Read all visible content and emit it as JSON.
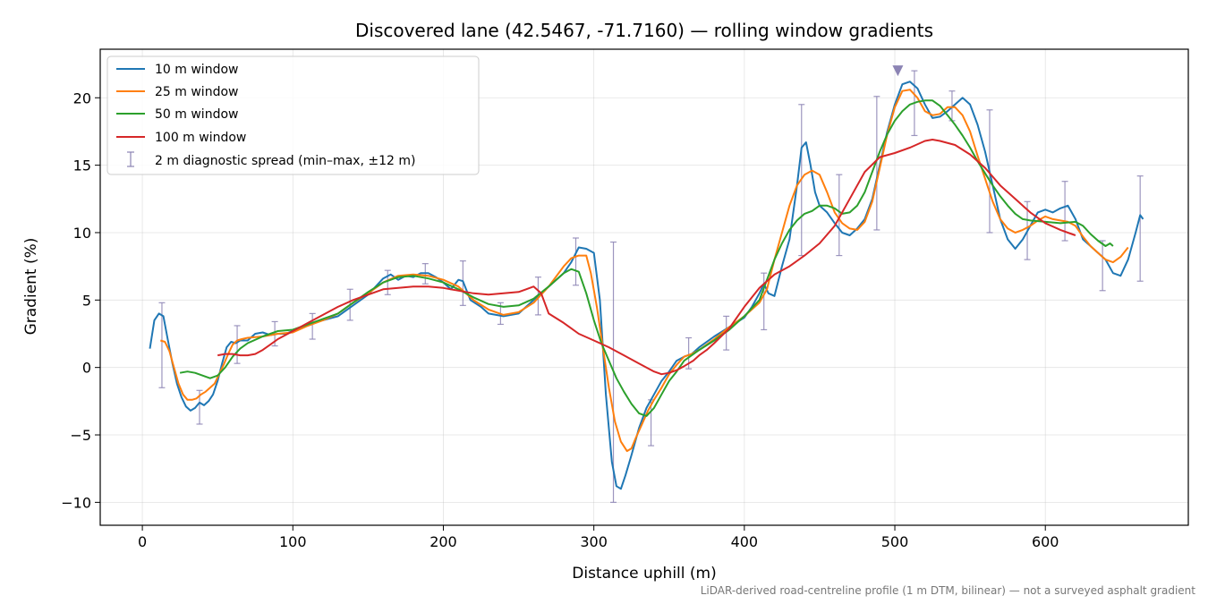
{
  "chart_data": {
    "type": "line",
    "title": "Discovered lane (42.5467, -71.7160) — rolling window gradients",
    "xlabel": "Distance uphill (m)",
    "ylabel": "Gradient (%)",
    "xlim": [
      -28,
      695
    ],
    "ylim": [
      -11.7,
      23.6
    ],
    "xticks": [
      0,
      100,
      200,
      300,
      400,
      500,
      600
    ],
    "yticks": [
      -10,
      -5,
      0,
      5,
      10,
      15,
      20
    ],
    "grid": true,
    "legend_position": "top-left",
    "footnote": "LiDAR-derived road-centreline profile (1 m DTM, bilinear) — not a surveyed asphalt gradient",
    "colors": {
      "w10": "#1f77b4",
      "w25": "#ff7f0e",
      "w50": "#2ca02c",
      "w100": "#d62728",
      "spread": "#8c84b4"
    },
    "series": [
      {
        "name": "10 m window",
        "color": "#1f77b4",
        "x": [
          5,
          8,
          11,
          14,
          17,
          20,
          23,
          26,
          29,
          32,
          35,
          38,
          41,
          44,
          47,
          50,
          53,
          56,
          59,
          62,
          65,
          70,
          75,
          80,
          85,
          90,
          95,
          100,
          110,
          120,
          130,
          140,
          150,
          160,
          165,
          170,
          175,
          180,
          185,
          190,
          195,
          200,
          205,
          210,
          213,
          218,
          225,
          230,
          240,
          250,
          260,
          270,
          280,
          285,
          290,
          295,
          300,
          304,
          308,
          312,
          315,
          318,
          321,
          325,
          330,
          335,
          340,
          345,
          350,
          355,
          360,
          365,
          370,
          380,
          390,
          400,
          405,
          410,
          413,
          416,
          420,
          425,
          430,
          435,
          438,
          441,
          444,
          447,
          450,
          455,
          460,
          465,
          470,
          475,
          480,
          485,
          490,
          495,
          500,
          505,
          510,
          515,
          520,
          525,
          530,
          535,
          540,
          545,
          550,
          555,
          560,
          565,
          570,
          575,
          580,
          585,
          590,
          595,
          600,
          605,
          610,
          615,
          620,
          625,
          630,
          635,
          640,
          645,
          650,
          655,
          660,
          663,
          665
        ],
        "y": [
          1.4,
          3.5,
          4.0,
          3.8,
          2.0,
          0.3,
          -1.2,
          -2.2,
          -2.9,
          -3.2,
          -3.0,
          -2.6,
          -2.8,
          -2.5,
          -2.0,
          -1.0,
          0.3,
          1.5,
          1.9,
          1.8,
          2.0,
          2.0,
          2.5,
          2.6,
          2.4,
          2.5,
          2.5,
          2.7,
          3.2,
          3.5,
          3.8,
          4.6,
          5.4,
          6.6,
          6.9,
          6.5,
          6.8,
          6.7,
          7.0,
          7.0,
          6.7,
          6.3,
          5.8,
          6.5,
          6.4,
          5.0,
          4.5,
          4.0,
          3.8,
          4.0,
          5.0,
          6.0,
          7.0,
          7.8,
          8.9,
          8.8,
          8.5,
          5.0,
          -2.0,
          -7.0,
          -8.8,
          -9.0,
          -8.0,
          -6.5,
          -4.5,
          -3.0,
          -2.0,
          -1.0,
          -0.3,
          0.5,
          0.8,
          1.0,
          1.5,
          2.3,
          3.0,
          3.7,
          4.5,
          5.5,
          6.2,
          5.5,
          5.3,
          7.5,
          9.5,
          13.5,
          16.3,
          16.7,
          15.0,
          13.0,
          12.0,
          11.5,
          10.7,
          10.0,
          9.8,
          10.3,
          11.0,
          12.5,
          15.0,
          17.5,
          19.5,
          21.0,
          21.2,
          20.7,
          19.5,
          18.5,
          18.6,
          19.0,
          19.5,
          20.0,
          19.5,
          18.0,
          16.0,
          13.5,
          11.0,
          9.5,
          8.8,
          9.5,
          10.5,
          11.5,
          11.7,
          11.5,
          11.8,
          12.0,
          11.0,
          9.5,
          9.0,
          8.5,
          8.0,
          7.0,
          6.8,
          8.0,
          10.0,
          11.3,
          11.0
        ]
      },
      {
        "name": "25 m window",
        "color": "#ff7f0e",
        "x": [
          12,
          15,
          18,
          21,
          24,
          27,
          30,
          33,
          36,
          39,
          42,
          45,
          48,
          51,
          54,
          57,
          60,
          63,
          66,
          70,
          80,
          90,
          100,
          110,
          120,
          130,
          140,
          150,
          160,
          170,
          180,
          190,
          200,
          210,
          220,
          230,
          240,
          250,
          260,
          270,
          280,
          285,
          290,
          295,
          298,
          302,
          306,
          310,
          314,
          318,
          322,
          325,
          328,
          332,
          336,
          340,
          345,
          350,
          355,
          360,
          365,
          370,
          380,
          390,
          400,
          410,
          415,
          420,
          425,
          430,
          435,
          440,
          445,
          450,
          455,
          460,
          465,
          470,
          475,
          480,
          485,
          490,
          495,
          500,
          505,
          510,
          515,
          520,
          525,
          530,
          535,
          540,
          545,
          550,
          555,
          560,
          565,
          570,
          575,
          580,
          585,
          590,
          595,
          600,
          605,
          610,
          615,
          620,
          625,
          630,
          635,
          640,
          645,
          650,
          655
        ],
        "y": [
          2.0,
          1.9,
          1.2,
          0.0,
          -1.2,
          -2.0,
          -2.4,
          -2.4,
          -2.3,
          -2.0,
          -1.8,
          -1.5,
          -1.2,
          -0.5,
          0.2,
          1.0,
          1.7,
          2.0,
          2.1,
          2.2,
          2.3,
          2.5,
          2.6,
          3.1,
          3.5,
          4.0,
          4.8,
          5.5,
          6.3,
          6.8,
          6.9,
          6.8,
          6.5,
          6.0,
          5.0,
          4.3,
          3.9,
          4.1,
          4.8,
          6.0,
          7.5,
          8.1,
          8.3,
          8.3,
          7.0,
          4.5,
          1.5,
          -1.5,
          -4.0,
          -5.5,
          -6.2,
          -6.0,
          -5.2,
          -4.2,
          -3.2,
          -2.4,
          -1.5,
          -0.5,
          0.2,
          0.8,
          1.0,
          1.3,
          2.1,
          3.0,
          3.8,
          4.8,
          5.8,
          8.0,
          10.0,
          12.0,
          13.5,
          14.3,
          14.6,
          14.3,
          13.0,
          11.5,
          10.7,
          10.3,
          10.2,
          10.8,
          12.3,
          14.8,
          17.3,
          19.3,
          20.5,
          20.6,
          20.0,
          19.0,
          18.7,
          18.8,
          19.3,
          19.3,
          18.7,
          17.5,
          15.7,
          14.0,
          12.3,
          11.0,
          10.3,
          10.0,
          10.2,
          10.5,
          10.9,
          11.2,
          11.0,
          10.9,
          10.8,
          10.5,
          9.7,
          9.0,
          8.5,
          8.0,
          7.8,
          8.2,
          8.9
        ]
      },
      {
        "name": "50 m window",
        "color": "#2ca02c",
        "x": [
          25,
          30,
          35,
          40,
          45,
          50,
          55,
          60,
          65,
          70,
          80,
          90,
          100,
          110,
          120,
          130,
          140,
          150,
          160,
          170,
          180,
          190,
          200,
          210,
          220,
          230,
          240,
          250,
          260,
          270,
          280,
          285,
          290,
          295,
          300,
          305,
          310,
          315,
          320,
          325,
          330,
          335,
          340,
          345,
          350,
          355,
          360,
          370,
          380,
          390,
          400,
          410,
          415,
          420,
          425,
          430,
          435,
          440,
          445,
          450,
          455,
          460,
          465,
          470,
          475,
          480,
          485,
          490,
          495,
          500,
          505,
          510,
          515,
          520,
          525,
          530,
          535,
          540,
          545,
          550,
          555,
          560,
          565,
          570,
          575,
          580,
          585,
          590,
          600,
          610,
          620,
          625,
          630,
          635,
          640,
          643,
          645
        ],
        "y": [
          -0.4,
          -0.3,
          -0.4,
          -0.6,
          -0.8,
          -0.6,
          0.0,
          0.8,
          1.4,
          1.8,
          2.3,
          2.7,
          2.8,
          3.2,
          3.6,
          4.0,
          4.8,
          5.6,
          6.3,
          6.7,
          6.8,
          6.6,
          6.3,
          5.8,
          5.2,
          4.7,
          4.5,
          4.6,
          5.1,
          6.0,
          7.0,
          7.3,
          7.1,
          5.5,
          3.5,
          1.8,
          0.5,
          -0.8,
          -1.8,
          -2.7,
          -3.4,
          -3.6,
          -3.0,
          -2.0,
          -1.0,
          -0.3,
          0.5,
          1.3,
          2.0,
          2.8,
          3.8,
          5.0,
          6.5,
          8.0,
          9.2,
          10.2,
          10.9,
          11.4,
          11.6,
          12.0,
          12.0,
          11.8,
          11.4,
          11.5,
          12.0,
          13.0,
          14.5,
          16.0,
          17.3,
          18.3,
          19.0,
          19.5,
          19.7,
          19.8,
          19.8,
          19.4,
          18.7,
          18.0,
          17.2,
          16.3,
          15.3,
          14.4,
          13.5,
          12.7,
          12.0,
          11.4,
          11.0,
          10.9,
          10.8,
          10.7,
          10.8,
          10.5,
          9.9,
          9.4,
          9.0,
          9.2,
          9.0
        ]
      },
      {
        "name": "100 m window",
        "color": "#d62728",
        "x": [
          50,
          55,
          60,
          65,
          70,
          75,
          80,
          85,
          90,
          95,
          100,
          110,
          120,
          130,
          140,
          150,
          160,
          170,
          180,
          190,
          200,
          210,
          220,
          230,
          240,
          250,
          255,
          260,
          265,
          270,
          280,
          290,
          300,
          310,
          320,
          330,
          340,
          345,
          350,
          355,
          360,
          363,
          366,
          370,
          375,
          380,
          390,
          400,
          410,
          420,
          430,
          440,
          450,
          460,
          470,
          480,
          490,
          500,
          510,
          520,
          525,
          530,
          540,
          550,
          560,
          570,
          580,
          590,
          600,
          610,
          615,
          620
        ],
        "y": [
          0.9,
          1.0,
          1.0,
          0.9,
          0.9,
          1.0,
          1.3,
          1.7,
          2.1,
          2.4,
          2.7,
          3.3,
          3.9,
          4.5,
          5.0,
          5.4,
          5.8,
          5.9,
          6.0,
          6.0,
          5.9,
          5.7,
          5.5,
          5.4,
          5.5,
          5.6,
          5.8,
          6.0,
          5.5,
          4.0,
          3.3,
          2.5,
          2.0,
          1.5,
          0.9,
          0.3,
          -0.3,
          -0.5,
          -0.4,
          -0.2,
          0.1,
          0.3,
          0.5,
          0.9,
          1.3,
          1.8,
          2.9,
          4.5,
          5.9,
          6.9,
          7.5,
          8.3,
          9.2,
          10.5,
          12.5,
          14.5,
          15.6,
          15.9,
          16.3,
          16.8,
          16.9,
          16.8,
          16.5,
          15.8,
          14.8,
          13.5,
          12.5,
          11.5,
          10.7,
          10.2,
          10.0,
          9.8
        ]
      }
    ],
    "error_bars": {
      "name": "2 m diagnostic spread (min–max, ±12 m)",
      "color": "#8c84b4",
      "points": [
        {
          "x": 13,
          "low": -1.5,
          "high": 4.8
        },
        {
          "x": 38,
          "low": -4.2,
          "high": -1.7
        },
        {
          "x": 63,
          "low": 0.3,
          "high": 3.1
        },
        {
          "x": 88,
          "low": 1.6,
          "high": 3.4
        },
        {
          "x": 113,
          "low": 2.1,
          "high": 4.0
        },
        {
          "x": 138,
          "low": 3.5,
          "high": 5.8
        },
        {
          "x": 163,
          "low": 5.4,
          "high": 7.2
        },
        {
          "x": 188,
          "low": 6.2,
          "high": 7.7
        },
        {
          "x": 213,
          "low": 4.6,
          "high": 7.9
        },
        {
          "x": 238,
          "low": 3.2,
          "high": 4.8
        },
        {
          "x": 263,
          "low": 3.9,
          "high": 6.7
        },
        {
          "x": 288,
          "low": 6.1,
          "high": 9.6
        },
        {
          "x": 313,
          "low": -10.0,
          "high": 9.3
        },
        {
          "x": 338,
          "low": -5.8,
          "high": -2.4
        },
        {
          "x": 363,
          "low": -0.1,
          "high": 2.2
        },
        {
          "x": 388,
          "low": 1.3,
          "high": 3.8
        },
        {
          "x": 413,
          "low": 2.8,
          "high": 7.0
        },
        {
          "x": 438,
          "low": 8.3,
          "high": 19.5
        },
        {
          "x": 463,
          "low": 8.3,
          "high": 14.3
        },
        {
          "x": 488,
          "low": 10.2,
          "high": 20.1
        },
        {
          "x": 513,
          "low": 17.2,
          "high": 22.0
        },
        {
          "x": 538,
          "low": 18.3,
          "high": 20.5
        },
        {
          "x": 563,
          "low": 10.0,
          "high": 19.1
        },
        {
          "x": 588,
          "low": 8.0,
          "high": 12.3
        },
        {
          "x": 613,
          "low": 9.4,
          "high": 13.8
        },
        {
          "x": 638,
          "low": 5.7,
          "high": 9.4
        },
        {
          "x": 663,
          "low": 6.4,
          "high": 14.2
        }
      ]
    },
    "peak_marker": {
      "x": 502,
      "y": 22.0
    }
  }
}
